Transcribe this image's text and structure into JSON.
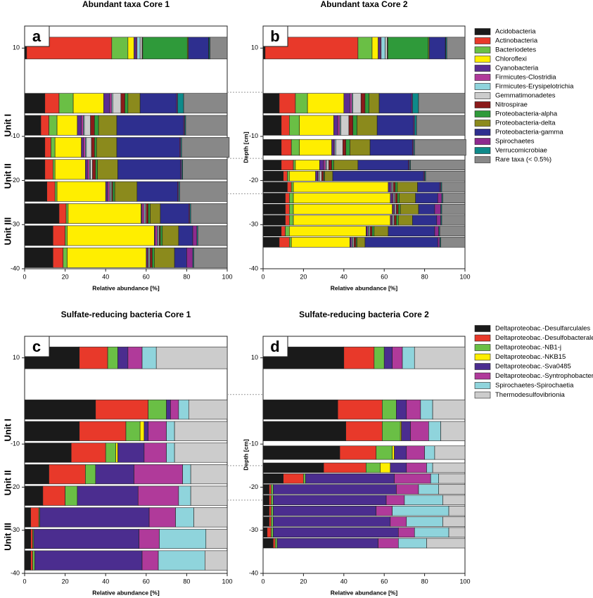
{
  "chart_data": [
    {
      "type": "stacked_barh",
      "xlabel": "Relative abundance [%]",
      "xlim": [
        0,
        100
      ],
      "xticks": [
        0,
        20,
        40,
        60,
        80,
        100
      ],
      "ylim": [
        -40,
        15
      ],
      "yticks": [
        10,
        -10,
        -20,
        -30,
        -40
      ],
      "units": [
        {
          "name": "Unit I",
          "top": 0,
          "bottom": -15
        },
        {
          "name": "Unit II",
          "top": -15,
          "bottom": -23
        },
        {
          "name": "Unit III",
          "top": -23,
          "bottom": -40
        }
      ],
      "series": [
        {
          "name": "Acidobacteria",
          "color": "#1a1a1a"
        },
        {
          "name": "Actinobacteria",
          "color": "#e8392a"
        },
        {
          "name": "Bacteriodetes",
          "color": "#6abf45"
        },
        {
          "name": "Chloroflexi",
          "color": "#ffee00"
        },
        {
          "name": "Cyanobacteria",
          "color": "#5a2d91"
        },
        {
          "name": "Firmicutes-Clostridia",
          "color": "#b03a9a"
        },
        {
          "name": "Firmicutes-Erysipelotrichia",
          "color": "#8fd4dc"
        },
        {
          "name": "Gemmatimonadetes",
          "color": "#cccccc"
        },
        {
          "name": "Nitrospirae",
          "color": "#8b1a1a"
        },
        {
          "name": "Proteobacteria-alpha",
          "color": "#2f9a3a"
        },
        {
          "name": "Proteobacteria-delta",
          "color": "#8b8a1c"
        },
        {
          "name": "Proteobacteria-gamma",
          "color": "#2e2f8f"
        },
        {
          "name": "Spirochaetes",
          "color": "#8e2a8e"
        },
        {
          "name": "Verrucomicrobiae",
          "color": "#0e8a8a"
        },
        {
          "name": "Rare taxa (< 0.5%)",
          "color": "#888888"
        }
      ],
      "panels": [
        {
          "title": "Abundant taxa Core 1",
          "label": "a",
          "y": [
            10,
            -2.5,
            -7.5,
            -12.5,
            -17.5,
            -22.5,
            -27.5,
            -32.5,
            -37.5
          ],
          "values": [
            [
              1,
              42,
              8,
              3,
              1,
              0.5,
              1.5,
              1,
              0.3,
              22,
              0.5,
              10,
              0.2,
              0.5,
              8.5
            ],
            [
              10,
              7,
              7,
              15,
              3,
              1,
              0.5,
              4,
              2,
              1.5,
              6,
              18,
              0.5,
              3,
              21.5
            ],
            [
              8,
              4,
              4,
              10,
              2,
              1,
              0.5,
              3,
              2,
              2,
              9,
              33,
              0.5,
              0.5,
              20.5
            ],
            [
              10,
              3,
              2,
              13,
              1,
              1,
              0.5,
              2.5,
              1.5,
              1,
              10,
              31,
              0.5,
              0.5,
              23.5
            ],
            [
              10,
              4,
              1,
              15,
              1,
              1,
              0.5,
              1,
              1.5,
              1,
              10,
              31,
              0.5,
              0.5,
              22
            ],
            [
              11,
              4,
              1,
              24,
              1,
              1,
              0.5,
              0.5,
              0.5,
              1,
              11,
              20,
              0.5,
              0.5,
              23.5
            ],
            [
              17,
              3.5,
              1,
              36,
              0.5,
              1,
              0.5,
              0.5,
              1,
              1,
              5,
              14,
              0.5,
              0.5,
              18
            ],
            [
              14,
              6,
              1,
              43,
              0.5,
              1,
              0.5,
              0.5,
              0.5,
              1,
              8,
              7,
              2,
              0.5,
              14.5
            ],
            [
              14,
              5,
              2,
              39,
              0.5,
              0.5,
              0.5,
              0.5,
              1,
              1,
              10,
              6,
              3,
              0.5,
              16.5
            ]
          ]
        },
        {
          "title": "Abundant taxa Core 2",
          "label": "b",
          "ylabel": "Depth [cm]",
          "y": [
            10,
            -2.5,
            -7.5,
            -12.5,
            -16.5,
            -19,
            -21.5,
            -24,
            -26.5,
            -29,
            -31.5,
            -34
          ],
          "values": [
            [
              1,
              46,
              7,
              3,
              1,
              0.5,
              2,
              1,
              0.3,
              20,
              0.5,
              8,
              0.2,
              0.5,
              9
            ],
            [
              8,
              8,
              6,
              18,
              3,
              1,
              0.5,
              4,
              2,
              2,
              5,
              16,
              0.5,
              3,
              23
            ],
            [
              9,
              4,
              5,
              17,
              2,
              1,
              0.5,
              4,
              2,
              2,
              10,
              18,
              0.5,
              1,
              24
            ],
            [
              9,
              5,
              4,
              16,
              1,
              0.5,
              0.5,
              3.5,
              1.5,
              2,
              10,
              21,
              0.5,
              0.5,
              25.5
            ],
            [
              9,
              6,
              1,
              12,
              2,
              1,
              0.5,
              1,
              1.5,
              1,
              12,
              25,
              0.5,
              0.5,
              27
            ],
            [
              10,
              2,
              1,
              13,
              1,
              0.5,
              0.5,
              1,
              1,
              0.5,
              4,
              45,
              0.5,
              0.5,
              19.5
            ],
            [
              12,
              2,
              1,
              47,
              1,
              0.5,
              0.5,
              0.5,
              1,
              1,
              10,
              11,
              0.5,
              0.5,
              11.5
            ],
            [
              11,
              2,
              2,
              48,
              1,
              0.5,
              0.5,
              0.5,
              1,
              1,
              8,
              11,
              2,
              0.5,
              11
            ],
            [
              11,
              2,
              2,
              49,
              0.5,
              0.5,
              0.5,
              0.5,
              1,
              1,
              9,
              8,
              3,
              0.5,
              11.5
            ],
            [
              11,
              2,
              2,
              48,
              0.5,
              0.5,
              0.5,
              0.5,
              1,
              1,
              7,
              12,
              2,
              0.5,
              11.5
            ],
            [
              9,
              2,
              2,
              38,
              0.5,
              0.5,
              0.5,
              0.5,
              1,
              1,
              7,
              23,
              2,
              0.5,
              12.5
            ],
            [
              8,
              5,
              1,
              29,
              0.5,
              0.5,
              0.5,
              0.5,
              1,
              0.5,
              4,
              36,
              1,
              0.5,
              12
            ]
          ]
        }
      ]
    },
    {
      "type": "stacked_barh",
      "xlabel": "Relative abundance [%]",
      "xlim": [
        0,
        100
      ],
      "xticks": [
        0,
        20,
        40,
        60,
        80,
        100
      ],
      "ylim": [
        -40,
        15
      ],
      "yticks": [
        10,
        -10,
        -20,
        -30,
        -40
      ],
      "units": [
        {
          "name": "Unit I",
          "top": 1.5,
          "bottom": -15
        },
        {
          "name": "Unit II",
          "top": -15,
          "bottom": -23
        },
        {
          "name": "Unit III",
          "top": -23,
          "bottom": -40
        }
      ],
      "series": [
        {
          "name": "Deltaproteobac.-Desulfarculales",
          "color": "#1a1a1a"
        },
        {
          "name": "Deltaproteobac.-Desulfobacterales",
          "color": "#e8392a"
        },
        {
          "name": "Deltaproteobac.-NB1-j",
          "color": "#6abf45"
        },
        {
          "name": "Deltaproteobac.-NKB15",
          "color": "#ffee00"
        },
        {
          "name": "Deltaproteobac.-Sva0485",
          "color": "#4b2d8f"
        },
        {
          "name": "Deltaproteobac.-Syntrophobacterales",
          "color": "#b03a9a"
        },
        {
          "name": "Spirochaetes-Spirochaetia",
          "color": "#8fd4dc"
        },
        {
          "name": "Thermodesulfovibrionia",
          "color": "#cccccc"
        }
      ],
      "panels": [
        {
          "title": "Sulfate-reducing bacteria Core 1",
          "label": "c",
          "y": [
            10,
            -2,
            -7,
            -12,
            -17,
            -22,
            -27,
            -32,
            -37
          ],
          "values": [
            [
              27,
              14,
              5,
              0,
              5,
              7,
              7,
              35
            ],
            [
              35,
              26,
              9,
              0,
              2,
              4,
              5,
              19
            ],
            [
              27,
              23,
              7,
              2,
              2,
              9,
              4,
              26
            ],
            [
              23,
              17,
              5,
              1,
              13,
              11,
              4,
              26
            ],
            [
              12,
              18,
              5,
              0,
              19,
              24,
              4,
              18
            ],
            [
              9,
              11,
              6,
              0,
              30,
              20,
              6,
              18
            ],
            [
              3,
              4,
              0.5,
              0,
              54,
              13,
              9,
              16.5
            ],
            [
              3,
              1,
              0.5,
              0,
              52,
              10,
              23,
              10.5
            ],
            [
              3,
              1,
              1,
              0,
              53,
              8,
              23,
              11
            ]
          ]
        },
        {
          "title": "Sulfate-reducing bacteria Core 2",
          "label": "d",
          "ylabel": "Depth [cm]",
          "y": [
            10,
            -2,
            -7,
            -12,
            -15.5,
            -18,
            -20.5,
            -23,
            -25.5,
            -28,
            -30.5,
            -33
          ],
          "values": [
            [
              40,
              15,
              5,
              0,
              4,
              5,
              6,
              25
            ],
            [
              37,
              22,
              7,
              0,
              5,
              7,
              6,
              16
            ],
            [
              41,
              18,
              9,
              0.5,
              4.5,
              9,
              6,
              12
            ],
            [
              38,
              18,
              8,
              1,
              6,
              9,
              5,
              15
            ],
            [
              30,
              21,
              7,
              5,
              8,
              10,
              3,
              16
            ],
            [
              10,
              10,
              1,
              0,
              44,
              18,
              4,
              13
            ],
            [
              3,
              1,
              1,
              0,
              61,
              11,
              10,
              13
            ],
            [
              3,
              1,
              1,
              0,
              56,
              9,
              19,
              11
            ],
            [
              3,
              1,
              1,
              0,
              51,
              8,
              28,
              8
            ],
            [
              3,
              1,
              1,
              0,
              58,
              8,
              18,
              11
            ],
            [
              2,
              2,
              1,
              0,
              62,
              8,
              17,
              8
            ],
            [
              5,
              1,
              1,
              0,
              50,
              10,
              14,
              19
            ]
          ]
        }
      ]
    }
  ]
}
